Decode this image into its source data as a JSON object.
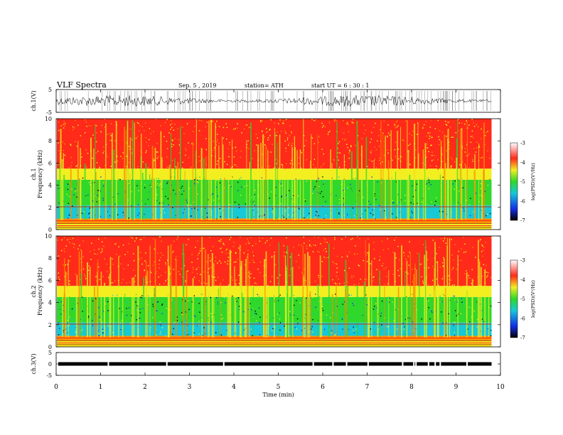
{
  "header": {
    "title": "VLF  Spectra",
    "date": "Sep. 5  , 2019",
    "station": "station= ATH",
    "start": "start  UT  =    6  : 30 : 1"
  },
  "colors": {
    "red": "#ff2a1a",
    "orange": "#ff8a00",
    "yellow": "#f2ee20",
    "green": "#2fd82a",
    "cyan": "#16c8d8",
    "blue": "#1430e8",
    "black": "#000000"
  },
  "chart_data": {
    "type": "heatmap",
    "panels": [
      {
        "id": "ch1-waveform",
        "ylabel": "ch.1(V)",
        "yticks": [
          "5",
          "-5"
        ],
        "ylim": [
          -5,
          5
        ],
        "trace_level": 0
      },
      {
        "id": "ch1-spectrogram",
        "ylabel": "ch.1\nFrequency (kHz)",
        "ylabel_lines": [
          "ch.1",
          "Frequency  (kHz)"
        ],
        "yticks": [
          "0",
          "2",
          "4",
          "6",
          "8",
          "10"
        ],
        "ylim": [
          0,
          10
        ],
        "bands_khz": [
          {
            "from": 0,
            "to": 0.6,
            "level": "mixed"
          },
          {
            "from": 0.6,
            "to": 1.0,
            "level": "orange"
          },
          {
            "from": 1.0,
            "to": 2.2,
            "level": "cyan"
          },
          {
            "from": 2.2,
            "to": 4.5,
            "level": "green"
          },
          {
            "from": 4.5,
            "to": 5.5,
            "level": "yellow"
          },
          {
            "from": 5.5,
            "to": 10,
            "level": "red"
          }
        ],
        "colorbar": {
          "label": "log(PSD)(V²/Hz)",
          "ticks": [
            "-3",
            "-4",
            "-5",
            "-6",
            "-7"
          ],
          "range": [
            -7,
            -3
          ]
        }
      },
      {
        "id": "ch2-spectrogram",
        "ylabel": "ch.2\nFrequency (kHz)",
        "ylabel_lines": [
          "ch.2",
          "Frequency  (kHz)"
        ],
        "yticks": [
          "0",
          "2",
          "4",
          "6",
          "8",
          "10"
        ],
        "ylim": [
          0,
          10
        ],
        "bands_khz": [
          {
            "from": 0,
            "to": 0.6,
            "level": "mixed"
          },
          {
            "from": 0.6,
            "to": 1.0,
            "level": "orange"
          },
          {
            "from": 1.0,
            "to": 2.2,
            "level": "cyan"
          },
          {
            "from": 2.2,
            "to": 4.5,
            "level": "green"
          },
          {
            "from": 4.5,
            "to": 5.5,
            "level": "yellow"
          },
          {
            "from": 5.5,
            "to": 10,
            "level": "red"
          }
        ],
        "colorbar": {
          "label": "log(PSD)(V²/Hz)",
          "ticks": [
            "-3",
            "-4",
            "-5",
            "-6",
            "-7"
          ],
          "range": [
            -7,
            -3
          ]
        }
      },
      {
        "id": "ch3-waveform",
        "ylabel": "ch.3(V)",
        "yticks": [
          "5",
          "0",
          "-5"
        ],
        "ylim": [
          -5,
          5
        ],
        "trace_level": 0
      }
    ],
    "xlabel": "Time  (min)",
    "xticks": [
      "0",
      "1",
      "2",
      "3",
      "4",
      "5",
      "6",
      "7",
      "8",
      "9",
      "10"
    ],
    "xlim": [
      0,
      10
    ],
    "data_end_min": 9.8
  }
}
